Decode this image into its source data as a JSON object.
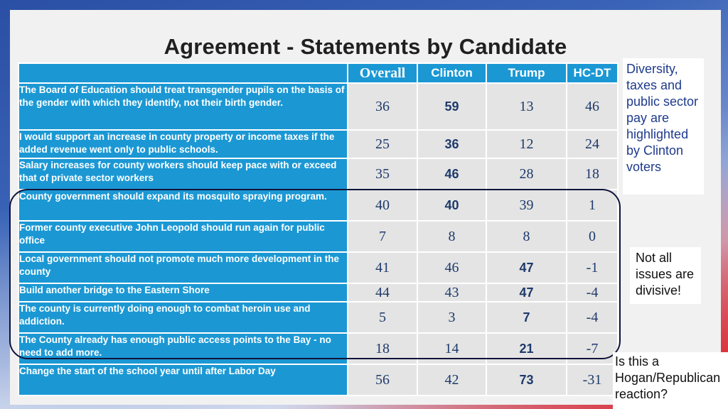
{
  "title": "Agreement - Statements by Candidate",
  "headers": [
    "Overall",
    "Clinton",
    "Trump",
    "HC-DT"
  ],
  "rows": [
    {
      "statement": "The Board of Education should treat transgender pupils on the basis of the gender with which they identify, not their birth gender.",
      "values": [
        "36",
        "59",
        "13",
        "46"
      ],
      "bold_index": 1,
      "height": 66
    },
    {
      "statement": "I would support an increase in county property or income taxes if the added revenue went only to public schools.",
      "values": [
        "25",
        "36",
        "12",
        "24"
      ],
      "bold_index": 1,
      "height": 40
    },
    {
      "statement": "Salary increases for county workers should keep pace with or exceed that of private sector workers",
      "values": [
        "35",
        "46",
        "28",
        "18"
      ],
      "bold_index": 1,
      "height": 44
    },
    {
      "statement": "County government should expand its mosquito spraying program.",
      "values": [
        "40",
        "40",
        "39",
        "1"
      ],
      "bold_index": 1,
      "height": 44
    },
    {
      "statement": "Former county executive John Leopold should run again for public office",
      "values": [
        "7",
        "8",
        "8",
        "0"
      ],
      "bold_index": -1,
      "height": 44
    },
    {
      "statement": "Local government should not promote much more development in the county",
      "values": [
        "41",
        "46",
        "47",
        "-1"
      ],
      "bold_index": 2,
      "height": 44
    },
    {
      "statement": "Build another bridge to the Eastern Shore",
      "values": [
        "44",
        "43",
        "47",
        "-4"
      ],
      "bold_index": 2,
      "height": 26
    },
    {
      "statement": "The county is currently doing enough to combat heroin use and addiction.",
      "values": [
        "5",
        "3",
        "7",
        "-4"
      ],
      "bold_index": 2,
      "height": 44
    },
    {
      "statement": "The County already has enough public access points to the Bay - no need to add more.",
      "values": [
        "18",
        "14",
        "21",
        "-7"
      ],
      "bold_index": 2,
      "height": 44
    },
    {
      "statement": "Change the start of the school year until after Labor Day",
      "values": [
        "56",
        "42",
        "73",
        "-31"
      ],
      "bold_index": 2,
      "height": 44
    }
  ],
  "notes": {
    "diversity": "Diversity, taxes and public sector pay are highlighted by Clinton voters",
    "not_divisive": "Not all issues are divisive!",
    "hogan": "Is this a Hogan/Republican reaction?"
  }
}
